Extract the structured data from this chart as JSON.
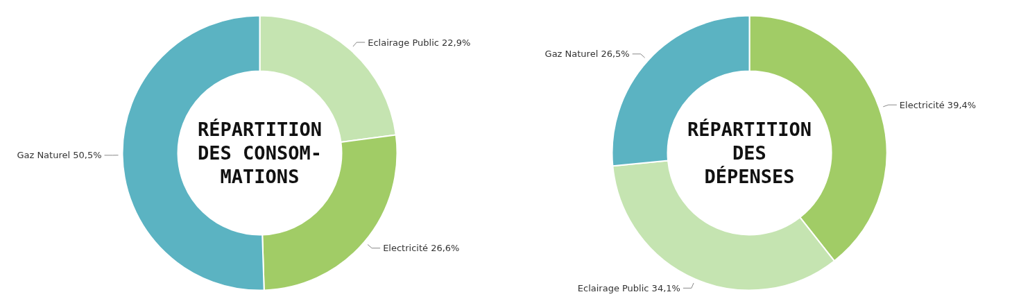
{
  "chart_data": [
    {
      "type": "donut",
      "title": "RÉPARTITION\nDES CONSOM-\nMATIONS",
      "categories": [
        "Eclairage Public",
        "Electricité",
        "Gaz Naturel"
      ],
      "values": [
        22.9,
        26.6,
        50.5
      ],
      "colors": [
        "#c5e4b1",
        "#a1cc66",
        "#5bb3c2"
      ],
      "value_labels": [
        "22,9%",
        "26,6%",
        "50,5%"
      ]
    },
    {
      "type": "donut",
      "title": "RÉPARTITION\nDES\nDÉPENSES",
      "categories": [
        "Electricité",
        "Eclairage Public",
        "Gaz Naturel"
      ],
      "values": [
        39.4,
        34.1,
        26.5
      ],
      "colors": [
        "#a1cc66",
        "#c5e4b1",
        "#5bb3c2"
      ],
      "value_labels": [
        "39,4%",
        "34,1%",
        "26,5%"
      ]
    }
  ]
}
